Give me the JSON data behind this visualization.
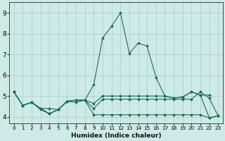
{
  "xlabel": "Humidex (Indice chaleur)",
  "bg_color": "#cdeae6",
  "grid_color": "#a8d4cf",
  "line_color": "#1a6b5a",
  "xlim": [
    -0.5,
    23.5
  ],
  "ylim": [
    3.7,
    9.5
  ],
  "yticks": [
    4,
    5,
    6,
    7,
    8,
    9
  ],
  "xticks": [
    0,
    1,
    2,
    3,
    4,
    5,
    6,
    7,
    8,
    9,
    10,
    11,
    12,
    13,
    14,
    15,
    16,
    17,
    18,
    19,
    20,
    21,
    22,
    23
  ],
  "lines": [
    {
      "x": [
        0,
        1,
        2,
        3,
        4,
        5,
        6,
        7,
        8,
        9,
        10,
        11,
        12,
        13,
        14,
        15,
        16,
        17,
        18,
        19,
        20,
        21,
        22,
        23
      ],
      "y": [
        5.2,
        4.55,
        4.7,
        4.35,
        4.15,
        4.35,
        4.75,
        4.8,
        4.8,
        5.55,
        7.8,
        8.35,
        9.0,
        7.05,
        7.55,
        7.4,
        5.9,
        5.0,
        4.9,
        4.95,
        5.2,
        5.05,
        5.05,
        null
      ]
    },
    {
      "x": [
        0,
        1,
        2,
        3,
        4,
        5,
        6,
        7,
        8,
        9,
        10,
        11,
        12,
        13,
        14,
        15,
        16,
        17,
        18,
        19,
        20,
        21,
        22,
        23
      ],
      "y": [
        5.2,
        4.55,
        4.7,
        4.4,
        4.15,
        4.35,
        4.75,
        4.8,
        4.8,
        4.65,
        5.0,
        5.0,
        5.0,
        5.0,
        5.0,
        5.0,
        5.0,
        5.0,
        4.9,
        4.95,
        5.2,
        5.05,
        3.95,
        4.05
      ]
    },
    {
      "x": [
        0,
        1,
        2,
        3,
        4,
        5,
        6,
        7,
        8,
        9,
        10,
        11,
        12,
        13,
        14,
        15,
        16,
        17,
        18,
        19,
        20,
        21,
        22,
        23
      ],
      "y": [
        5.2,
        4.55,
        4.7,
        4.4,
        4.15,
        4.35,
        4.75,
        4.8,
        4.8,
        4.1,
        4.1,
        4.1,
        4.1,
        4.1,
        4.1,
        4.1,
        4.1,
        4.1,
        4.1,
        4.1,
        4.1,
        4.1,
        3.95,
        4.05
      ]
    },
    {
      "x": [
        0,
        1,
        2,
        3,
        4,
        5,
        6,
        7,
        8,
        9,
        10,
        11,
        12,
        13,
        14,
        15,
        16,
        17,
        18,
        19,
        20,
        21,
        22,
        23
      ],
      "y": [
        5.2,
        4.55,
        4.7,
        4.4,
        4.4,
        4.35,
        4.75,
        4.7,
        4.8,
        4.4,
        4.85,
        4.85,
        4.85,
        4.85,
        4.85,
        4.85,
        4.85,
        4.85,
        4.85,
        4.85,
        4.85,
        5.2,
        4.9,
        4.05
      ]
    }
  ]
}
